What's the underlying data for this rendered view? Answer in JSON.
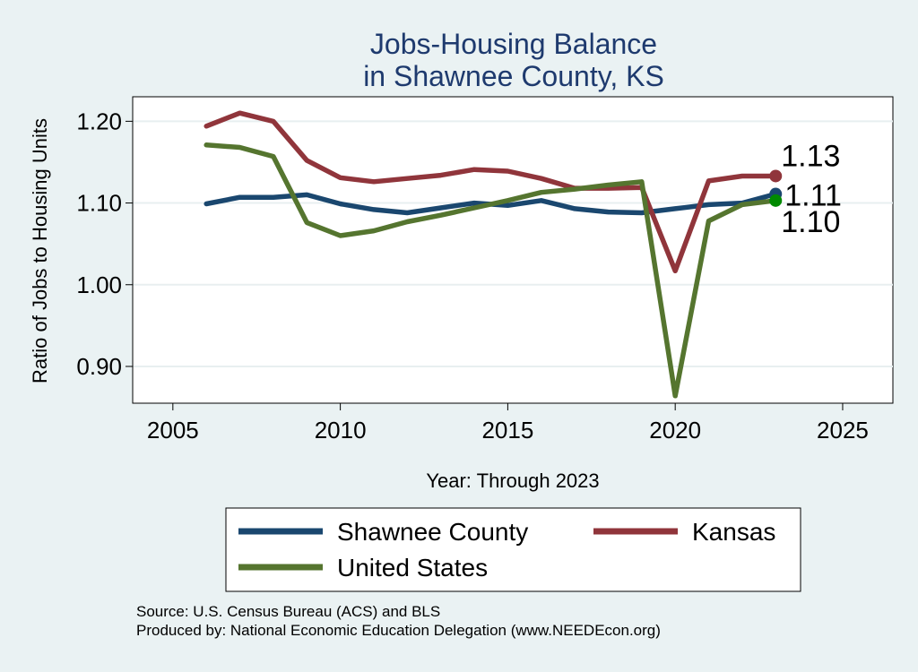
{
  "chart_data": {
    "type": "line",
    "title": [
      "Jobs-Housing Balance",
      "in Shawnee County, KS"
    ],
    "xlabel": "Year: Through 2023",
    "ylabel": "Ratio of Jobs to Housing Units",
    "xlim": [
      2003.8,
      2026.5
    ],
    "ylim": [
      0.855,
      1.23
    ],
    "x_ticks": [
      2005,
      2010,
      2015,
      2020,
      2025
    ],
    "x_tick_labels": [
      "2005",
      "2010",
      "2015",
      "2020",
      "2025"
    ],
    "y_ticks": [
      0.9,
      1.0,
      1.1,
      1.2
    ],
    "y_tick_labels": [
      "0.90",
      "1.00",
      "1.10",
      "1.20"
    ],
    "grid": true,
    "x": [
      2006,
      2007,
      2008,
      2009,
      2010,
      2011,
      2012,
      2013,
      2014,
      2015,
      2016,
      2017,
      2018,
      2019,
      2020,
      2021,
      2022,
      2023
    ],
    "series": [
      {
        "name": "Shawnee County",
        "color": "#1a476f",
        "values": [
          1.099,
          1.107,
          1.107,
          1.11,
          1.099,
          1.092,
          1.088,
          1.094,
          1.1,
          1.097,
          1.103,
          1.093,
          1.089,
          1.088,
          1.093,
          1.098,
          1.1,
          1.111
        ],
        "end_label": "1.11"
      },
      {
        "name": "Kansas",
        "color": "#90353b",
        "values": [
          1.194,
          1.21,
          1.2,
          1.152,
          1.131,
          1.126,
          1.13,
          1.134,
          1.141,
          1.139,
          1.13,
          1.118,
          1.118,
          1.119,
          1.017,
          1.127,
          1.133,
          1.133
        ],
        "end_label": "1.13"
      },
      {
        "name": "United States",
        "color": "#55752f",
        "values": [
          1.171,
          1.168,
          1.157,
          1.076,
          1.06,
          1.066,
          1.077,
          1.085,
          1.094,
          1.103,
          1.113,
          1.117,
          1.122,
          1.126,
          0.864,
          1.078,
          1.098,
          1.103
        ],
        "end_label": "1.10"
      }
    ],
    "end_marker_colors": {
      "Shawnee County": "#1a476f",
      "Kansas": "#90353b",
      "United States": "#008a00"
    },
    "legend": {
      "placement": "bottom",
      "entries": [
        "Shawnee County",
        "Kansas",
        "United States"
      ]
    },
    "notes": [
      "Source: U.S. Census Bureau (ACS) and BLS",
      "Produced by: National Economic Education Delegation (www.NEEDEcon.org)"
    ]
  }
}
